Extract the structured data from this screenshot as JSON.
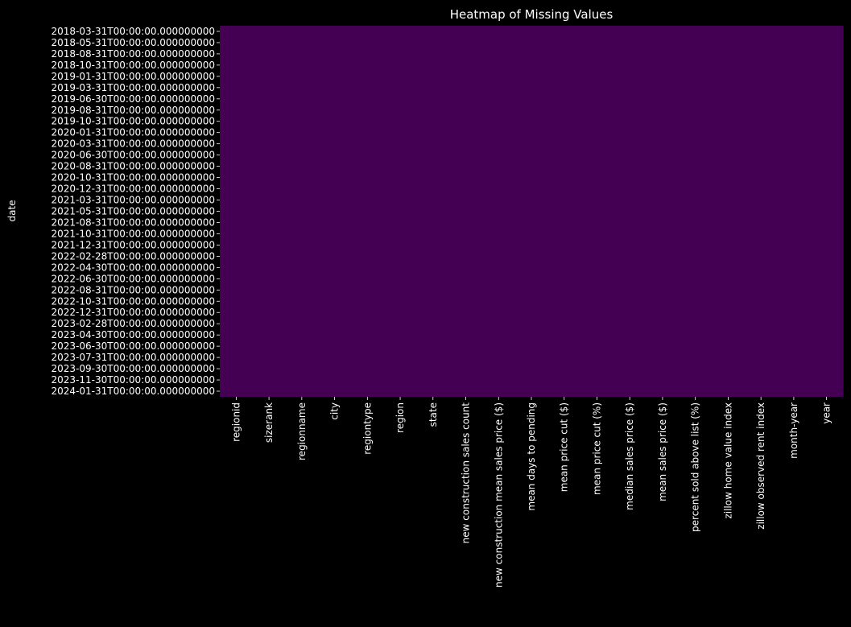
{
  "chart_data": {
    "type": "heatmap",
    "title": "Heatmap of Missing Values",
    "ylabel": "date",
    "xlabel": "",
    "legend": "none",
    "grid": false,
    "colors": {
      "background": "#000000",
      "present": "#440154",
      "text": "#ffffff"
    },
    "y_ticks": [
      "2018-03-31T00:00:00.000000000",
      "2018-05-31T00:00:00.000000000",
      "2018-08-31T00:00:00.000000000",
      "2018-10-31T00:00:00.000000000",
      "2019-01-31T00:00:00.000000000",
      "2019-03-31T00:00:00.000000000",
      "2019-06-30T00:00:00.000000000",
      "2019-08-31T00:00:00.000000000",
      "2019-10-31T00:00:00.000000000",
      "2020-01-31T00:00:00.000000000",
      "2020-03-31T00:00:00.000000000",
      "2020-06-30T00:00:00.000000000",
      "2020-08-31T00:00:00.000000000",
      "2020-10-31T00:00:00.000000000",
      "2020-12-31T00:00:00.000000000",
      "2021-03-31T00:00:00.000000000",
      "2021-05-31T00:00:00.000000000",
      "2021-08-31T00:00:00.000000000",
      "2021-10-31T00:00:00.000000000",
      "2021-12-31T00:00:00.000000000",
      "2022-02-28T00:00:00.000000000",
      "2022-04-30T00:00:00.000000000",
      "2022-06-30T00:00:00.000000000",
      "2022-08-31T00:00:00.000000000",
      "2022-10-31T00:00:00.000000000",
      "2022-12-31T00:00:00.000000000",
      "2023-02-28T00:00:00.000000000",
      "2023-04-30T00:00:00.000000000",
      "2023-06-30T00:00:00.000000000",
      "2023-07-31T00:00:00.000000000",
      "2023-09-30T00:00:00.000000000",
      "2023-11-30T00:00:00.000000000",
      "2024-01-31T00:00:00.000000000"
    ],
    "columns": [
      "regionid",
      "sizerank",
      "regionname",
      "city",
      "regiontype",
      "region",
      "state",
      "new construction sales count",
      "new construction mean sales price ($)",
      "mean days to pending",
      "mean price cut ($)",
      "mean price cut (%)",
      "median sales price ($)",
      "mean sales price ($)",
      "percent sold above list (%)",
      "zillow home value index",
      "zillow observed rent index",
      "month-year",
      "year"
    ],
    "missing_fraction_per_column": [
      0,
      0,
      0,
      0,
      0,
      0,
      0,
      0,
      0,
      0,
      0,
      0,
      0,
      0,
      0,
      0,
      0,
      0,
      0
    ]
  }
}
